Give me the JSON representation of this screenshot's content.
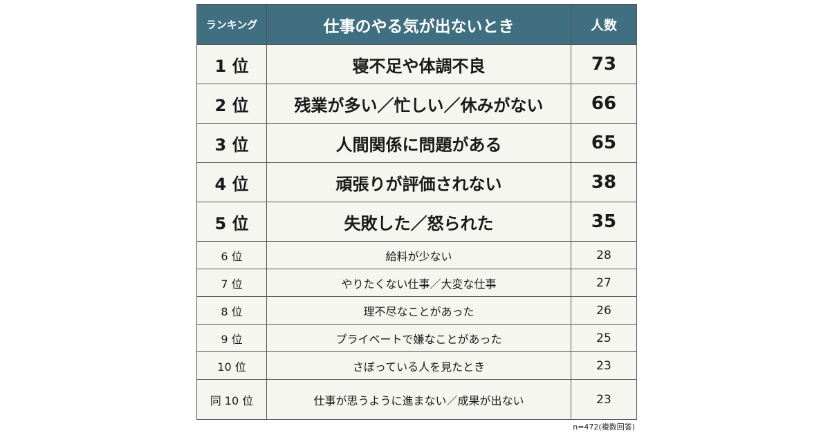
{
  "table": {
    "headers": {
      "rank": "ランキング",
      "title": "仕事のやる気が出ないとき",
      "count": "人数"
    },
    "rows": [
      {
        "rank": "1 位",
        "item": "寝不足や体調不良",
        "count": "73"
      },
      {
        "rank": "2 位",
        "item": "残業が多い／忙しい／休みがない",
        "count": "66"
      },
      {
        "rank": "3 位",
        "item": "人間関係に問題がある",
        "count": "65"
      },
      {
        "rank": "4 位",
        "item": "頑張りが評価されない",
        "count": "38"
      },
      {
        "rank": "5 位",
        "item": "失敗した／怒られた",
        "count": "35"
      },
      {
        "rank": "6 位",
        "item": "給料が少ない",
        "count": "28"
      },
      {
        "rank": "7 位",
        "item": "やりたくない仕事／大変な仕事",
        "count": "27"
      },
      {
        "rank": "8 位",
        "item": "理不尽なことがあった",
        "count": "26"
      },
      {
        "rank": "9 位",
        "item": "プライベートで嫌なことがあった",
        "count": "25"
      },
      {
        "rank": "10 位",
        "item": "さぼっている人を見たとき",
        "count": "23"
      },
      {
        "rank": "同 10 位",
        "item": "仕事が思うように進まない／成果が出ない",
        "count": "23"
      }
    ]
  },
  "note": "n=472(複数回答)",
  "colors": {
    "header_bg": "#3f6f80",
    "row_bg": "#f6f6f1",
    "border": "#555555"
  }
}
